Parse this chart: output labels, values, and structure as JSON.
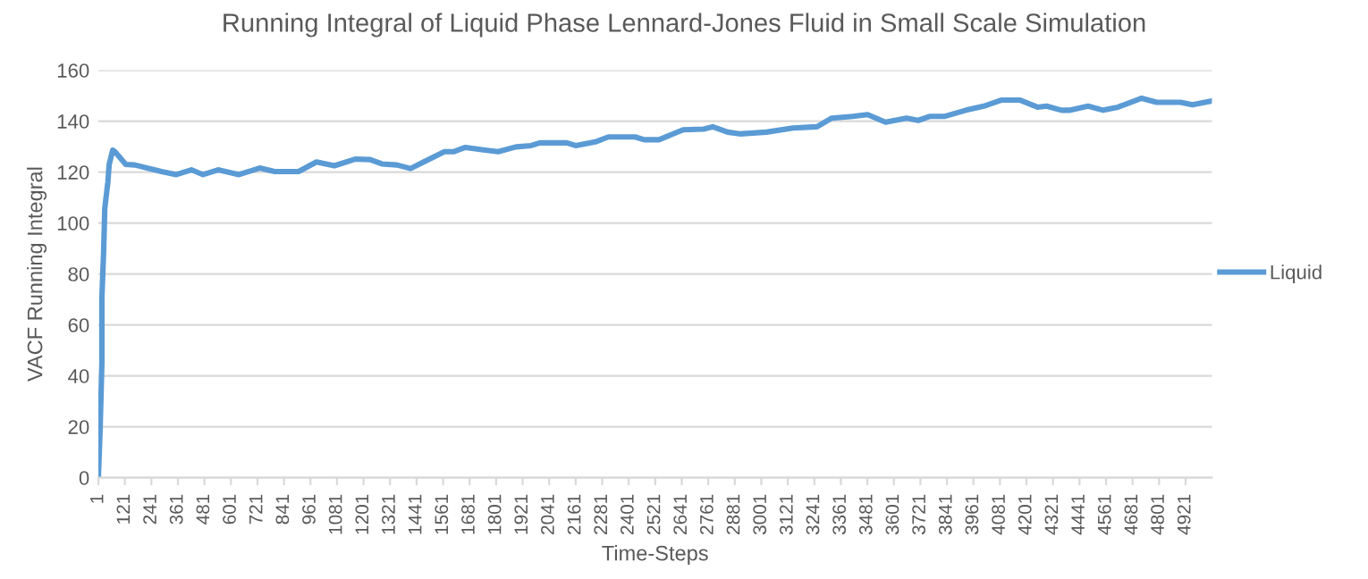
{
  "chart_data": {
    "type": "line",
    "title": "Running Integral of Liquid Phase Lennard-Jones Fluid in Small Scale Simulation",
    "xlabel": "Time-Steps",
    "ylabel": "VACF Running Integral",
    "x": [
      1,
      9,
      17,
      17,
      25,
      30,
      44,
      50,
      66,
      76,
      125,
      166,
      287,
      354,
      422,
      475,
      543,
      637,
      731,
      799,
      907,
      988,
      1069,
      1163,
      1231,
      1284,
      1352,
      1414,
      1473,
      1567,
      1608,
      1662,
      1743,
      1810,
      1891,
      1959,
      1999,
      2121,
      2161,
      2255,
      2309,
      2430,
      2471,
      2538,
      2647,
      2740,
      2781,
      2849,
      2903,
      3024,
      3145,
      3253,
      3320,
      3415,
      3482,
      3563,
      3658,
      3711,
      3765,
      3832,
      3927,
      4008,
      4089,
      4170,
      4251,
      4292,
      4359,
      4399,
      4480,
      4548,
      4615,
      4722,
      4790,
      4898,
      4952,
      5040
    ],
    "series": [
      {
        "name": "Liquid",
        "color": "#5b9bd5",
        "values": [
          0,
          19,
          45,
          70.6,
          89,
          105.7,
          116,
          123,
          128.6,
          128,
          123,
          122.8,
          120.2,
          119,
          120.9,
          119,
          120.9,
          119,
          121.6,
          120.2,
          120.2,
          124,
          122.5,
          125.1,
          124.9,
          123.2,
          122.8,
          121.4,
          124,
          128,
          128,
          129.7,
          128.7,
          128,
          129.9,
          130.4,
          131.5,
          131.5,
          130.4,
          132,
          133.8,
          133.8,
          132.7,
          132.7,
          136.6,
          136.9,
          137.8,
          135.7,
          135,
          135.7,
          137.3,
          137.8,
          141.2,
          141.9,
          142.6,
          139.6,
          141.2,
          140.3,
          141.9,
          141.9,
          144.3,
          145.9,
          148.3,
          148.3,
          145.5,
          145.9,
          144.3,
          144.3,
          145.9,
          144.3,
          145.5,
          149,
          147.4,
          147.4,
          146.4,
          147.9
        ]
      }
    ],
    "xlim": [
      1,
      5040
    ],
    "xticks": [
      1,
      121,
      241,
      361,
      481,
      601,
      721,
      841,
      961,
      1081,
      1201,
      1321,
      1441,
      1561,
      1681,
      1801,
      1921,
      2041,
      2161,
      2281,
      2401,
      2521,
      2641,
      2761,
      2881,
      3001,
      3121,
      3241,
      3361,
      3481,
      3601,
      3721,
      3841,
      3961,
      4081,
      4201,
      4321,
      4441,
      4561,
      4681,
      4801,
      4921
    ],
    "ylim": [
      0,
      160
    ],
    "yticks": [
      0,
      20,
      40,
      60,
      80,
      100,
      120,
      140,
      160
    ],
    "grid": "y",
    "legend": "right",
    "marker": "none",
    "line_style": "solid"
  }
}
